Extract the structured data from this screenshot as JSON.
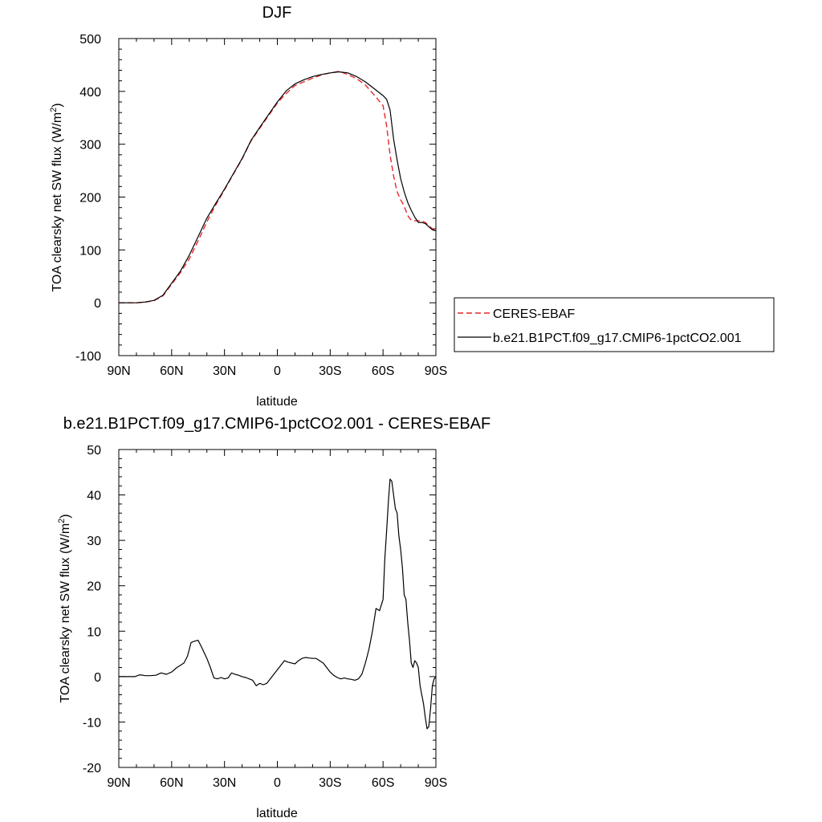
{
  "chart_data": [
    {
      "type": "line",
      "title": "DJF",
      "xlabel": "latitude",
      "ylabel_main": "TOA clearsky net SW flux (W/m",
      "ylabel_sup": "2",
      "ylabel_end": ")",
      "xlim": [
        90,
        -90
      ],
      "ylim": [
        -100,
        500
      ],
      "x_ticks": [
        90,
        60,
        30,
        0,
        -30,
        -60,
        -90
      ],
      "x_tick_labels": [
        "90N",
        "60N",
        "30N",
        "0",
        "30S",
        "60S",
        "90S"
      ],
      "y_ticks": [
        -100,
        0,
        100,
        200,
        300,
        400,
        500
      ],
      "y_tick_labels": [
        "-100",
        "0",
        "100",
        "200",
        "300",
        "400",
        "500"
      ],
      "legend_placement": "right",
      "series": [
        {
          "name": "CERES-EBAF",
          "color": "#e8262a",
          "dash": "dashed",
          "x": [
            90,
            85,
            80,
            75,
            70,
            65,
            60,
            55,
            50,
            45,
            40,
            35,
            30,
            25,
            20,
            15,
            10,
            5,
            0,
            -5,
            -10,
            -15,
            -20,
            -25,
            -30,
            -35,
            -40,
            -45,
            -50,
            -55,
            -60,
            -62,
            -64,
            -66,
            -68,
            -70,
            -72,
            -74,
            -76,
            -78,
            -80,
            -82,
            -84,
            -86,
            -88,
            -90
          ],
          "y": [
            0,
            0,
            0,
            1,
            4,
            13,
            35,
            57,
            83,
            117,
            153,
            185,
            214,
            243,
            272,
            306,
            330,
            354,
            378,
            396,
            411,
            418,
            425,
            431,
            435,
            438,
            432,
            424,
            412,
            393,
            373,
            335,
            280,
            240,
            210,
            195,
            183,
            165,
            156,
            155,
            155,
            155,
            152,
            146,
            140,
            137
          ]
        },
        {
          "name": "b.e21.B1PCT.f09_g17.CMIP6-1pctCO2.001",
          "color": "#000000",
          "dash": "solid",
          "x": [
            90,
            85,
            80,
            75,
            70,
            65,
            60,
            55,
            50,
            45,
            40,
            35,
            30,
            25,
            20,
            15,
            10,
            5,
            0,
            -5,
            -10,
            -15,
            -20,
            -25,
            -30,
            -35,
            -40,
            -45,
            -50,
            -55,
            -60,
            -62,
            -64,
            -66,
            -68,
            -70,
            -72,
            -74,
            -76,
            -78,
            -80,
            -82,
            -84,
            -86,
            -88,
            -90
          ],
          "y": [
            0,
            0,
            0,
            1.5,
            4.5,
            14,
            37,
            60,
            90,
            125,
            160,
            188,
            215,
            244,
            273,
            307,
            332,
            356,
            380,
            401,
            414,
            422,
            428,
            432,
            435,
            437,
            435,
            428,
            418,
            405,
            392,
            385,
            365,
            310,
            270,
            235,
            210,
            190,
            175,
            162,
            152,
            152,
            150,
            144,
            138,
            136
          ]
        }
      ]
    },
    {
      "type": "line",
      "title": "b.e21.B1PCT.f09_g17.CMIP6-1pctCO2.001 - CERES-EBAF",
      "xlabel": "latitude",
      "ylabel_main": "TOA clearsky net SW flux (W/m",
      "ylabel_sup": "2",
      "ylabel_end": ")",
      "xlim": [
        90,
        -90
      ],
      "ylim": [
        -20,
        50
      ],
      "x_ticks": [
        90,
        60,
        30,
        0,
        -30,
        -60,
        -90
      ],
      "x_tick_labels": [
        "90N",
        "60N",
        "30N",
        "0",
        "30S",
        "60S",
        "90S"
      ],
      "y_ticks": [
        -20,
        -10,
        0,
        10,
        20,
        30,
        40,
        50
      ],
      "y_tick_labels": [
        "-20",
        "-10",
        "0",
        "10",
        "20",
        "30",
        "40",
        "50"
      ],
      "series": [
        {
          "color": "#000000",
          "dash": "solid",
          "x": [
            90,
            85,
            81,
            78,
            75,
            72,
            69,
            66,
            63,
            60,
            57,
            55,
            53,
            51,
            49,
            47,
            45,
            43,
            40,
            38,
            36,
            34,
            32,
            30,
            28,
            26,
            24,
            22,
            20,
            18,
            16,
            14,
            12,
            10,
            8,
            6,
            4,
            2,
            0,
            -2,
            -4,
            -6,
            -8,
            -10,
            -12,
            -14,
            -16,
            -18,
            -20,
            -22,
            -24,
            -26,
            -28,
            -30,
            -32,
            -34,
            -36,
            -38,
            -40,
            -42,
            -44,
            -46,
            -48,
            -50,
            -52,
            -54,
            -56,
            -58,
            -60,
            -61,
            -62,
            -63,
            -64,
            -65,
            -66,
            -67,
            -68,
            -69,
            -70,
            -71,
            -72,
            -73,
            -74,
            -75,
            -76,
            -77,
            -78,
            -79,
            -80,
            -81,
            -82,
            -83,
            -84,
            -85,
            -86,
            -87,
            -88,
            -89,
            -90
          ],
          "y": [
            0,
            0,
            0,
            0.4,
            0.2,
            0.2,
            0.3,
            0.8,
            0.5,
            1.0,
            2.0,
            2.5,
            3.0,
            4.5,
            7.5,
            7.8,
            8.0,
            6.5,
            4.0,
            2.0,
            -0.3,
            -0.5,
            -0.2,
            -0.5,
            -0.3,
            0.8,
            0.5,
            0.3,
            0.0,
            -0.2,
            -0.5,
            -0.8,
            -2.0,
            -1.5,
            -1.8,
            -1.5,
            -0.5,
            0.5,
            1.5,
            2.5,
            3.5,
            3.2,
            3.0,
            2.8,
            3.5,
            4.0,
            4.2,
            4.1,
            4.0,
            4.0,
            3.5,
            3.0,
            2.0,
            1.0,
            0.3,
            -0.2,
            -0.5,
            -0.3,
            -0.5,
            -0.6,
            -0.8,
            -0.5,
            0.5,
            3.0,
            6.0,
            10.0,
            15.0,
            14.5,
            17.0,
            26.0,
            32.0,
            38.5,
            43.5,
            43.0,
            40.0,
            37.0,
            36.0,
            31.0,
            28.0,
            24.0,
            18.0,
            17.0,
            12.0,
            8.0,
            3.0,
            2.0,
            3.5,
            3.0,
            2.0,
            -2.0,
            -4.0,
            -6.0,
            -9.0,
            -11.5,
            -11.0,
            -7.0,
            -2.0,
            -0.5,
            0.0
          ]
        }
      ]
    }
  ]
}
